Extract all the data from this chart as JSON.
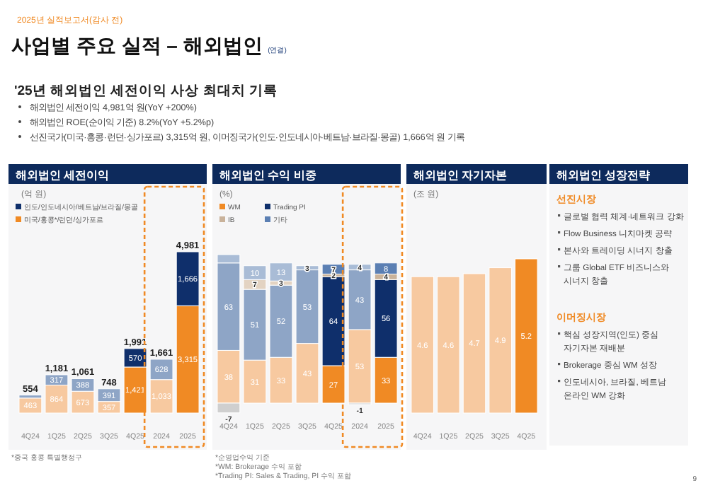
{
  "chart_data": [
    {
      "type": "other",
      "title": "사업별 주요 실적 – 해외법인",
      "subtitle": "'25년 해외법인 세전이익 사상 최대치 기록",
      "annotations": [
        "2025년 실적보고서(감사 전)",
        "(연결)",
        "해외법인 세전이익 4,981억 원(YoY +200%)",
        "해외법인 ROE(순이익 기준) 8.2%(YoY +5.2%p)",
        "선진국가(미국·홍콩·런던·싱가포르) 3,315억 원, 이머징국가(인도·인도네시아·베트남·브라질·몽골) 1,666억 원 기록",
        "9"
      ]
    },
    {
      "type": "bar",
      "title": "해외법인 세전이익",
      "ylabel": "(억 원)",
      "stacked": true,
      "legend": "top left",
      "categories": [
        "4Q24",
        "1Q25",
        "2Q25",
        "3Q25",
        "4Q25",
        "2024",
        "2025"
      ],
      "series": [
        {
          "name": "미국/홍콩*/런던/싱가포르",
          "color": "#f08a24",
          "colors": [
            "#f7c9a0",
            "#f7c9a0",
            "#f7c9a0",
            "#f7c9a0",
            "#f08a24",
            "#f7c9a0",
            "#f08a24"
          ],
          "values": [
            463,
            864,
            673,
            357,
            1421,
            1033,
            3315
          ],
          "value_labels": [
            "463",
            "864",
            "673",
            "357",
            "1,421",
            "1,033",
            "3,315"
          ]
        },
        {
          "name": "인도/인도네시아/베트남/브라질/몽골",
          "color": "#0f2f6b",
          "colors": [
            "#8ea5c6",
            "#8ea5c6",
            "#8ea5c6",
            "#8ea5c6",
            "#0f2f6b",
            "#8ea5c6",
            "#0f2f6b"
          ],
          "values": [
            91,
            317,
            388,
            391,
            570,
            628,
            1666
          ],
          "value_labels": [
            null,
            "317",
            "388",
            "391",
            "570",
            "628",
            "1,666"
          ]
        }
      ],
      "totals": [
        "554",
        "1,181",
        "1,061",
        "748",
        "1,991",
        "1,661",
        "4,981"
      ],
      "annotations": [
        "*중국 홍콩 특별행정구"
      ]
    },
    {
      "type": "bar",
      "title": "해외법인 수익 비중",
      "ylabel": "(%)",
      "stacked": true,
      "legend": "top left",
      "categories": [
        "4Q24",
        "1Q25",
        "2Q25",
        "3Q25",
        "4Q25",
        "2024",
        "2025"
      ],
      "series": [
        {
          "name": "WM",
          "color": "#f08a24",
          "colors": [
            "#f7c9a0",
            "#f7c9a0",
            "#f7c9a0",
            "#f7c9a0",
            "#f08a24",
            "#f7c9a0",
            "#f08a24"
          ],
          "values": [
            38,
            31,
            33,
            43,
            27,
            53,
            33
          ],
          "value_labels": [
            "38",
            "31",
            "33",
            "43",
            "27",
            "53",
            "33"
          ]
        },
        {
          "name": "Trading PI",
          "color": "#0f2f6b",
          "colors": [
            "#8ea5c6",
            "#8ea5c6",
            "#8ea5c6",
            "#8ea5c6",
            "#0f2f6b",
            "#8ea5c6",
            "#0f2f6b"
          ],
          "values": [
            63,
            51,
            52,
            53,
            64,
            43,
            56
          ],
          "value_labels": [
            "63",
            "51",
            "52",
            "53",
            "64",
            "43",
            "56"
          ]
        },
        {
          "name": "IB",
          "color": "#c9b29a",
          "colors": [
            "#cfcfcf",
            "#e3d3c2",
            "#e3d3c2",
            null,
            "#c9b29a",
            "#cfcfcf",
            "#c9b29a"
          ],
          "values": [
            -7,
            7,
            3,
            null,
            2,
            -1,
            4
          ],
          "value_labels": [
            "-7",
            "7",
            "3",
            null,
            "2",
            "-1",
            "4"
          ]
        },
        {
          "name": "기타",
          "color": "#5b7fb3",
          "colors": [
            "#a9bcd6",
            "#a9bcd6",
            "#a9bcd6",
            "#a9bcd6",
            "#5b7fb3",
            "#a9bcd6",
            "#5b7fb3"
          ],
          "values": [
            6,
            10,
            13,
            3,
            7,
            4,
            8
          ],
          "value_labels": [
            null,
            "10",
            "13",
            "3",
            "7",
            "4",
            "8"
          ]
        }
      ],
      "annotations": [
        "*순영업수익 기준",
        "*WM: Brokerage 수익 포함",
        "*Trading PI: Sales & Trading, PI 수익 포함"
      ]
    },
    {
      "type": "bar",
      "title": "해외법인 자기자본",
      "ylabel": "(조 원)",
      "categories": [
        "4Q24",
        "1Q25",
        "2Q25",
        "3Q25",
        "4Q25"
      ],
      "values": [
        4.6,
        4.6,
        4.7,
        4.9,
        5.2
      ],
      "colors": [
        "#f7c9a0",
        "#f7c9a0",
        "#f7c9a0",
        "#f7c9a0",
        "#f08a24"
      ],
      "data_labels": true
    },
    {
      "type": "other",
      "title": "해외법인 성장전략",
      "annotations": [
        "선진시장",
        "글로벌 협력 체계·네트워크 강화",
        "Flow Business 니치마켓 공략",
        "본사와 트레이딩 시너지 창출",
        "그룹 Global ETF 비즈니스와 시너지 창출",
        "이머징시장",
        "핵심 성장지역(인도) 중심 자기자본 재배분",
        "Brokerage 중심 WM 성장",
        "인도네시아, 브라질, 베트남 온라인 WM 강화"
      ]
    }
  ]
}
